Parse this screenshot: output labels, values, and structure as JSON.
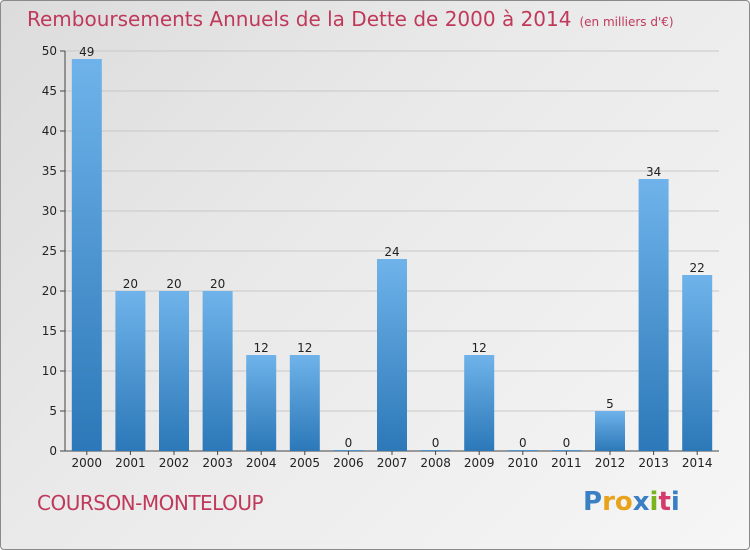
{
  "title": "Remboursements Annuels de la Dette de 2000 à 2014",
  "unit": "(en milliers d'€)",
  "commune": "COURSON-MONTELOUP",
  "logo": {
    "text": "Proxiti",
    "letters": [
      "P",
      "r",
      "o",
      "x",
      "i",
      "t",
      "i"
    ],
    "colors": [
      "#3a7fc4",
      "#e8a21c",
      "#e8a21c",
      "#3a7fc4",
      "#7ab31c",
      "#d43b6a",
      "#3a7fc4"
    ]
  },
  "colors": {
    "bar_light": "#6fb3ea",
    "bar_dark": "#2c78b8",
    "title": "#c0395a",
    "grid": "#c8c8c8"
  },
  "chart_data": {
    "type": "bar",
    "categories": [
      "2000",
      "2001",
      "2002",
      "2003",
      "2004",
      "2005",
      "2006",
      "2007",
      "2008",
      "2009",
      "2010",
      "2011",
      "2012",
      "2013",
      "2014"
    ],
    "values": [
      49,
      20,
      20,
      20,
      12,
      12,
      0,
      24,
      0,
      12,
      0,
      0,
      5,
      34,
      22
    ],
    "ylim": [
      0,
      50
    ],
    "yticks": [
      0,
      5,
      10,
      15,
      20,
      25,
      30,
      35,
      40,
      45,
      50
    ],
    "grid": true,
    "data_labels": true
  }
}
